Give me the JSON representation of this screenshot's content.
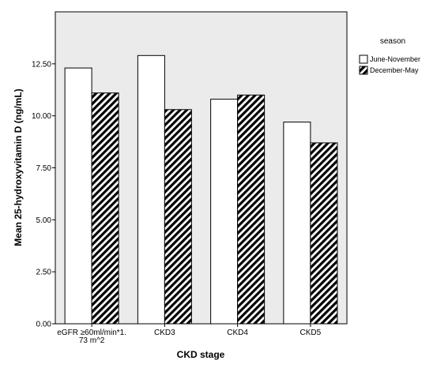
{
  "chart_data": {
    "type": "bar",
    "title": "",
    "xlabel": "CKD stage",
    "ylabel": "Mean 25-hydroxyvitamin D (ng/mL)",
    "ylim": [
      0,
      15
    ],
    "yticks": [
      0,
      2.5,
      5,
      7.5,
      10,
      12.5
    ],
    "ytick_labels": [
      "0.00",
      "2.50",
      "5.00",
      "7.50",
      "10.00",
      "12.50"
    ],
    "categories": [
      [
        "eGFR ≥60ml/min*1.",
        "73 m^2"
      ],
      [
        "CKD3"
      ],
      [
        "CKD4"
      ],
      [
        "CKD5"
      ]
    ],
    "series": [
      {
        "name": "June-November",
        "pattern": "solid-white",
        "values": [
          12.3,
          12.9,
          10.8,
          9.7
        ]
      },
      {
        "name": "December-May",
        "pattern": "diagonal-hatch",
        "values": [
          11.1,
          10.3,
          11.0,
          8.7
        ]
      }
    ],
    "grid": false,
    "legend": {
      "title": "season",
      "position": "top-right-outside"
    },
    "colors": {
      "plot_background": "#ebebeb",
      "bar_fill": "#ffffff",
      "bar_stroke": "#000000",
      "hatch": "#000000"
    }
  }
}
